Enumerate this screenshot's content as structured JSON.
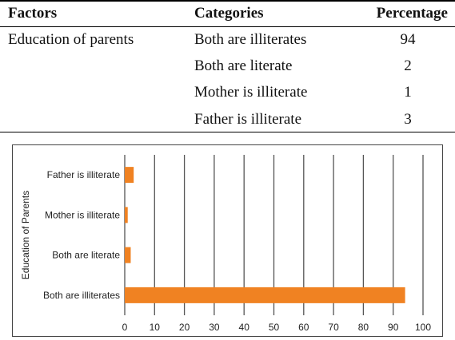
{
  "table": {
    "headers": {
      "factors": "Factors",
      "categories": "Categories",
      "percentage": "Percentage"
    },
    "factor": "Education of parents",
    "rows": [
      {
        "category": "Both are illiterates",
        "percentage": "94"
      },
      {
        "category": "Both are literate",
        "percentage": "2"
      },
      {
        "category": "Mother is illiterate",
        "percentage": "1"
      },
      {
        "category": "Father is illiterate",
        "percentage": "3"
      }
    ]
  },
  "chart_data": {
    "type": "bar",
    "orientation": "horizontal",
    "categories": [
      "Both are illiterates",
      "Both are literate",
      "Mother is illiterate",
      "Father is illiterate"
    ],
    "values": [
      94,
      2,
      1,
      3
    ],
    "ylabel": "Education of Parents",
    "xlabel": "",
    "xlim": [
      0,
      100
    ],
    "xticks": [
      0,
      10,
      20,
      30,
      40,
      50,
      60,
      70,
      80,
      90,
      100
    ],
    "grid": "vertical",
    "bar_color": "#f08222"
  }
}
